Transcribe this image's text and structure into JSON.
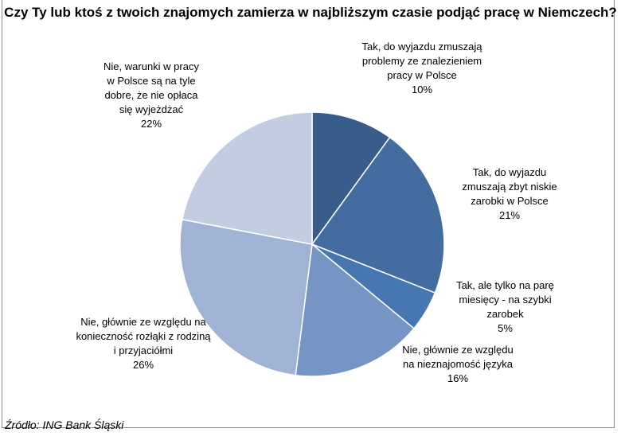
{
  "chart_data": {
    "type": "pie",
    "title": "Czy Ty lub ktoś z twoich znajomych zamierza w najbliższym czasie podjąć pracę w Niemczech?",
    "start": "top, clockwise",
    "slices": [
      {
        "label": "Tak, do wyjazdu zmuszają problemy ze znalezieniem pracy w Polsce",
        "value": 10,
        "pct": "10%",
        "color": "#385d8a"
      },
      {
        "label": "Tak, do wyjazdu zmuszają zbyt niskie zarobki w Polsce",
        "value": 21,
        "pct": "21%",
        "color": "#436da0"
      },
      {
        "label": "Tak, ale tylko na parę miesięcy - na szybki zarobek",
        "value": 5,
        "pct": "5%",
        "color": "#4777b2"
      },
      {
        "label": "Nie, głównie ze względu na nieznajomość języka",
        "value": 16,
        "pct": "16%",
        "color": "#7694c4"
      },
      {
        "label": "Nie, głównie ze względu na konieczność rozłąki z rodziną i przyjaciółmi",
        "value": 26,
        "pct": "26%",
        "color": "#a0b3d4"
      },
      {
        "label": "Nie, warunki w pracy w Polsce są na tyle dobre, że nie opłaca się wyjeżdżać",
        "value": 22,
        "pct": "22%",
        "color": "#c2cde2"
      }
    ]
  },
  "source": "Źródło: ING Bank Śląski"
}
